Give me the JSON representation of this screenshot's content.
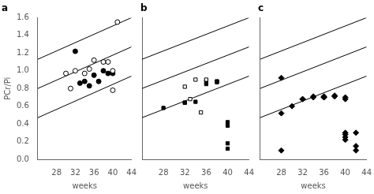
{
  "chart_data": [
    {
      "type": "scatter",
      "title": "a",
      "xlabel": "weeks",
      "ylabel": "PCr/Pi",
      "xlim": [
        24,
        44
      ],
      "ylim": [
        0.0,
        1.6
      ],
      "xticks": [
        28,
        32,
        36,
        40,
        44
      ],
      "yticks": [
        {
          "value": 0.0,
          "label": "0.0"
        },
        0.2,
        0.4,
        0.6,
        0.8,
        {
          "value": 1.0,
          "label": "1.0"
        },
        1.2,
        1.4,
        1.6
      ],
      "grid": false,
      "legend": false,
      "series": [
        {
          "type": "line",
          "color": "black",
          "x": [
            24,
            44
          ],
          "values": [
            1.13,
            1.6
          ]
        },
        {
          "type": "line",
          "color": "black",
          "x": [
            24,
            44
          ],
          "values": [
            0.8,
            1.27
          ]
        },
        {
          "type": "line",
          "color": "black",
          "x": [
            24,
            44
          ],
          "values": [
            0.47,
            0.94
          ]
        },
        {
          "type": "scatter",
          "marker": "open_circle",
          "color": "black",
          "x": [
            30,
            31,
            32,
            34,
            35,
            36,
            38,
            39,
            40,
            40,
            41
          ],
          "values": [
            0.97,
            0.8,
            1.0,
            0.97,
            1.02,
            1.12,
            1.1,
            1.1,
            1.0,
            0.78,
            1.55
          ]
        },
        {
          "type": "scatter",
          "marker": "circle",
          "color": "black",
          "x": [
            32,
            33,
            34,
            35,
            36,
            37,
            38,
            39,
            40
          ],
          "values": [
            1.22,
            0.86,
            0.88,
            0.83,
            0.95,
            0.88,
            1.0,
            0.97,
            0.97
          ]
        }
      ]
    },
    {
      "type": "scatter",
      "title": "b",
      "xlabel": "weeks",
      "xlim": [
        24,
        44
      ],
      "ylim": [
        0.0,
        1.6
      ],
      "xticks": [
        28,
        32,
        36,
        40,
        44
      ],
      "grid": false,
      "legend": false,
      "tick_labels": "x",
      "series": [
        {
          "type": "line",
          "color": "black",
          "x": [
            24,
            44
          ],
          "values": [
            1.13,
            1.6
          ]
        },
        {
          "type": "line",
          "color": "black",
          "x": [
            24,
            44
          ],
          "values": [
            0.8,
            1.27
          ]
        },
        {
          "type": "line",
          "color": "black",
          "x": [
            24,
            44
          ],
          "values": [
            0.47,
            0.94
          ]
        },
        {
          "type": "scatter",
          "marker": "open_square",
          "color": "black",
          "x": [
            32,
            33,
            34,
            35,
            36
          ],
          "values": [
            0.82,
            0.68,
            0.9,
            0.53,
            0.9
          ]
        },
        {
          "type": "scatter",
          "marker": "square",
          "color": "black",
          "x": [
            28,
            32,
            32,
            34,
            36,
            36,
            38,
            38,
            38,
            40,
            40,
            40,
            40
          ],
          "values": [
            0.58,
            0.64,
            0.64,
            0.65,
            0.85,
            0.88,
            0.87,
            0.88,
            0.88,
            0.38,
            0.42,
            0.18,
            0.12
          ]
        }
      ]
    },
    {
      "type": "scatter",
      "title": "c",
      "xlabel": "weeks",
      "xlim": [
        24,
        44
      ],
      "ylim": [
        0.0,
        1.6
      ],
      "xticks": [
        28,
        32,
        36,
        40,
        44
      ],
      "grid": false,
      "legend": false,
      "tick_labels": "x",
      "series": [
        {
          "type": "line",
          "color": "black",
          "x": [
            24,
            44
          ],
          "values": [
            1.13,
            1.6
          ]
        },
        {
          "type": "line",
          "color": "black",
          "x": [
            24,
            44
          ],
          "values": [
            0.8,
            1.27
          ]
        },
        {
          "type": "line",
          "color": "black",
          "x": [
            24,
            44
          ],
          "values": [
            0.47,
            0.94
          ]
        },
        {
          "type": "scatter",
          "marker": "diamond",
          "color": "black",
          "x": [
            28,
            28,
            28,
            30,
            32,
            32,
            34,
            34,
            36,
            36,
            36,
            38,
            38,
            40,
            40,
            40,
            40,
            40,
            40,
            42,
            42,
            42
          ],
          "values": [
            0.92,
            0.52,
            0.1,
            0.6,
            0.68,
            0.68,
            0.7,
            0.71,
            0.7,
            0.71,
            0.7,
            0.72,
            0.71,
            0.7,
            0.68,
            0.3,
            0.28,
            0.25,
            0.22,
            0.3,
            0.15,
            0.1
          ]
        }
      ]
    }
  ]
}
